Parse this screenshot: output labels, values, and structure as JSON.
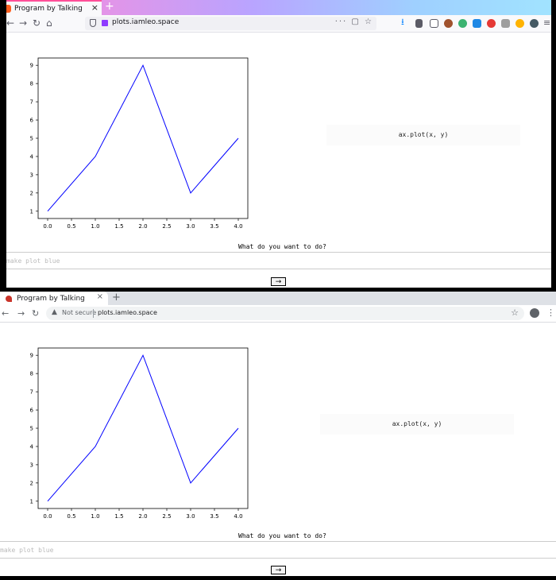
{
  "firefox": {
    "tab_title": "Program by Talking",
    "tab_close": "×",
    "new_tab": "+",
    "url": "plots.iamleo.space",
    "url_actions": "··· ▢ ☆",
    "nav": {
      "back": "←",
      "forward": "→",
      "reload": "↻",
      "home": "⌂"
    },
    "download_icon": "⭳",
    "menu_icon": "≡"
  },
  "chrome": {
    "tab_title": "Program by Talking",
    "tab_close": "×",
    "new_tab": "+",
    "nav": {
      "back": "←",
      "forward": "→",
      "reload": "↻"
    },
    "security_icon": "▲",
    "security_label": "Not secure",
    "url": "plots.iamleo.space",
    "bookmark_icon": "☆",
    "more_icon": "⋮"
  },
  "page": {
    "code_output": "ax.plot(x, y)",
    "prompt": "What do you want to do?",
    "input_placeholder": "make plot blue",
    "submit_label": "→"
  },
  "chart_data": [
    {
      "type": "line",
      "x": [
        0,
        1,
        2,
        3,
        4
      ],
      "y": [
        1,
        4,
        9,
        2,
        5
      ],
      "xticks": [
        "0.0",
        "0.5",
        "1.0",
        "1.5",
        "2.0",
        "2.5",
        "3.0",
        "3.5",
        "4.0"
      ],
      "yticks": [
        "1",
        "2",
        "3",
        "4",
        "5",
        "6",
        "7",
        "8",
        "9"
      ],
      "xlim": [
        -0.2,
        4.2
      ],
      "ylim": [
        0.6,
        9.4
      ],
      "line_color": "#0000ff",
      "grid": false
    },
    {
      "type": "line",
      "x": [
        0,
        1,
        2,
        3,
        4
      ],
      "y": [
        1,
        4,
        9,
        2,
        5
      ],
      "xticks": [
        "0.0",
        "0.5",
        "1.0",
        "1.5",
        "2.0",
        "2.5",
        "3.0",
        "3.5",
        "4.0"
      ],
      "yticks": [
        "1",
        "2",
        "3",
        "4",
        "5",
        "6",
        "7",
        "8",
        "9"
      ],
      "xlim": [
        -0.2,
        4.2
      ],
      "ylim": [
        0.6,
        9.4
      ],
      "line_color": "#0000ff",
      "grid": false
    }
  ]
}
